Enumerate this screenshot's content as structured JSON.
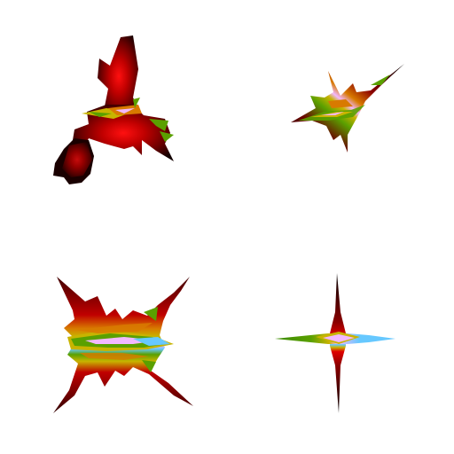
{
  "scene": {
    "background": "#ffffff",
    "shape_count": 4,
    "palette": {
      "dark": "#000000",
      "deep_red": "#7a0000",
      "red": "#e00000",
      "orange": "#d87a00",
      "yellow": "#c8b400",
      "green": "#5aa000",
      "light_blue": "#66c8ff",
      "pink": "#f2b8ff"
    },
    "shapes": [
      {
        "name": "splat-top-left",
        "style": "three-lobed-red-splat"
      },
      {
        "name": "splat-top-right",
        "style": "small-arrow-star"
      },
      {
        "name": "splat-bottom-left",
        "style": "spiky-x-splat"
      },
      {
        "name": "splat-bottom-right",
        "style": "four-point-star"
      }
    ]
  }
}
